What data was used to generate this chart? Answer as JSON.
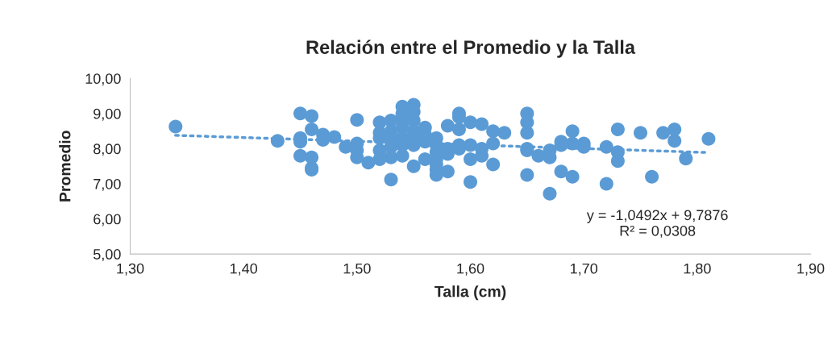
{
  "chart_data": {
    "type": "scatter",
    "title": "Relación entre el Promedio y la Talla",
    "xlabel": "Talla (cm)",
    "ylabel": "Promedio",
    "xlim": [
      1.3,
      1.9
    ],
    "ylim": [
      5,
      10
    ],
    "xticks": [
      {
        "value": 1.3,
        "label": "1,30"
      },
      {
        "value": 1.4,
        "label": "1,40"
      },
      {
        "value": 1.5,
        "label": "1,50"
      },
      {
        "value": 1.6,
        "label": "1,60"
      },
      {
        "value": 1.7,
        "label": "1,70"
      },
      {
        "value": 1.8,
        "label": "1,80"
      },
      {
        "value": 1.9,
        "label": "1,90"
      }
    ],
    "yticks": [
      {
        "value": 5,
        "label": "5,00"
      },
      {
        "value": 6,
        "label": "6,00"
      },
      {
        "value": 7,
        "label": "7,00"
      },
      {
        "value": 8,
        "label": "8,00"
      },
      {
        "value": 9,
        "label": "9,00"
      },
      {
        "value": 10,
        "label": "10,00"
      }
    ],
    "grid": false,
    "marker": "circle",
    "series": [
      {
        "color": "#5b9bd5",
        "x": [
          1.34,
          1.43,
          1.45,
          1.45,
          1.45,
          1.45,
          1.46,
          1.46,
          1.46,
          1.46,
          1.46,
          1.47,
          1.47,
          1.48,
          1.49,
          1.5,
          1.5,
          1.5,
          1.5,
          1.51,
          1.52,
          1.52,
          1.52,
          1.52,
          1.52,
          1.53,
          1.53,
          1.53,
          1.53,
          1.53,
          1.53,
          1.54,
          1.54,
          1.54,
          1.54,
          1.54,
          1.54,
          1.54,
          1.55,
          1.55,
          1.55,
          1.55,
          1.55,
          1.55,
          1.55,
          1.56,
          1.56,
          1.56,
          1.56,
          1.57,
          1.57,
          1.57,
          1.57,
          1.57,
          1.57,
          1.57,
          1.58,
          1.58,
          1.58,
          1.58,
          1.59,
          1.59,
          1.59,
          1.59,
          1.59,
          1.6,
          1.6,
          1.6,
          1.6,
          1.61,
          1.61,
          1.61,
          1.62,
          1.62,
          1.62,
          1.63,
          1.65,
          1.65,
          1.65,
          1.65,
          1.65,
          1.65,
          1.66,
          1.67,
          1.67,
          1.67,
          1.68,
          1.68,
          1.68,
          1.69,
          1.69,
          1.69,
          1.7,
          1.7,
          1.72,
          1.72,
          1.73,
          1.73,
          1.73,
          1.75,
          1.76,
          1.77,
          1.78,
          1.78,
          1.79,
          1.81
        ],
        "values": [
          8.63,
          8.22,
          9.0,
          8.3,
          8.2,
          7.8,
          8.93,
          8.55,
          7.75,
          7.45,
          7.4,
          8.4,
          8.25,
          8.33,
          8.05,
          8.82,
          8.15,
          7.95,
          7.75,
          7.6,
          8.75,
          8.45,
          8.3,
          7.95,
          7.7,
          8.8,
          8.5,
          8.25,
          8.05,
          7.75,
          7.12,
          9.2,
          9.0,
          8.85,
          8.6,
          8.3,
          8.1,
          7.8,
          9.25,
          9.05,
          8.8,
          8.5,
          8.25,
          8.1,
          7.5,
          8.6,
          8.4,
          8.2,
          7.7,
          8.3,
          8.1,
          7.9,
          7.7,
          7.55,
          7.4,
          7.25,
          8.65,
          8.0,
          7.85,
          7.35,
          9.0,
          8.9,
          8.55,
          8.1,
          8.0,
          8.75,
          8.1,
          7.7,
          7.05,
          8.7,
          8.0,
          7.8,
          8.5,
          8.15,
          7.55,
          8.45,
          9.0,
          8.75,
          8.45,
          8.0,
          7.95,
          7.25,
          7.8,
          7.95,
          7.75,
          6.72,
          8.2,
          8.1,
          7.35,
          8.5,
          8.15,
          7.2,
          8.15,
          8.05,
          8.05,
          7.0,
          8.55,
          7.9,
          7.65,
          8.45,
          7.2,
          8.45,
          8.55,
          8.22,
          7.72,
          8.28
        ]
      },
      {
        "type": "line",
        "color": "#5b9bd5",
        "line_style": "dotted",
        "marker": "none",
        "x": [
          1.34,
          1.81
        ],
        "values": [
          8.38,
          7.89
        ]
      }
    ],
    "annotations": [
      "y = -1,0492x + 9,7876\nR² = 0,0308"
    ]
  }
}
